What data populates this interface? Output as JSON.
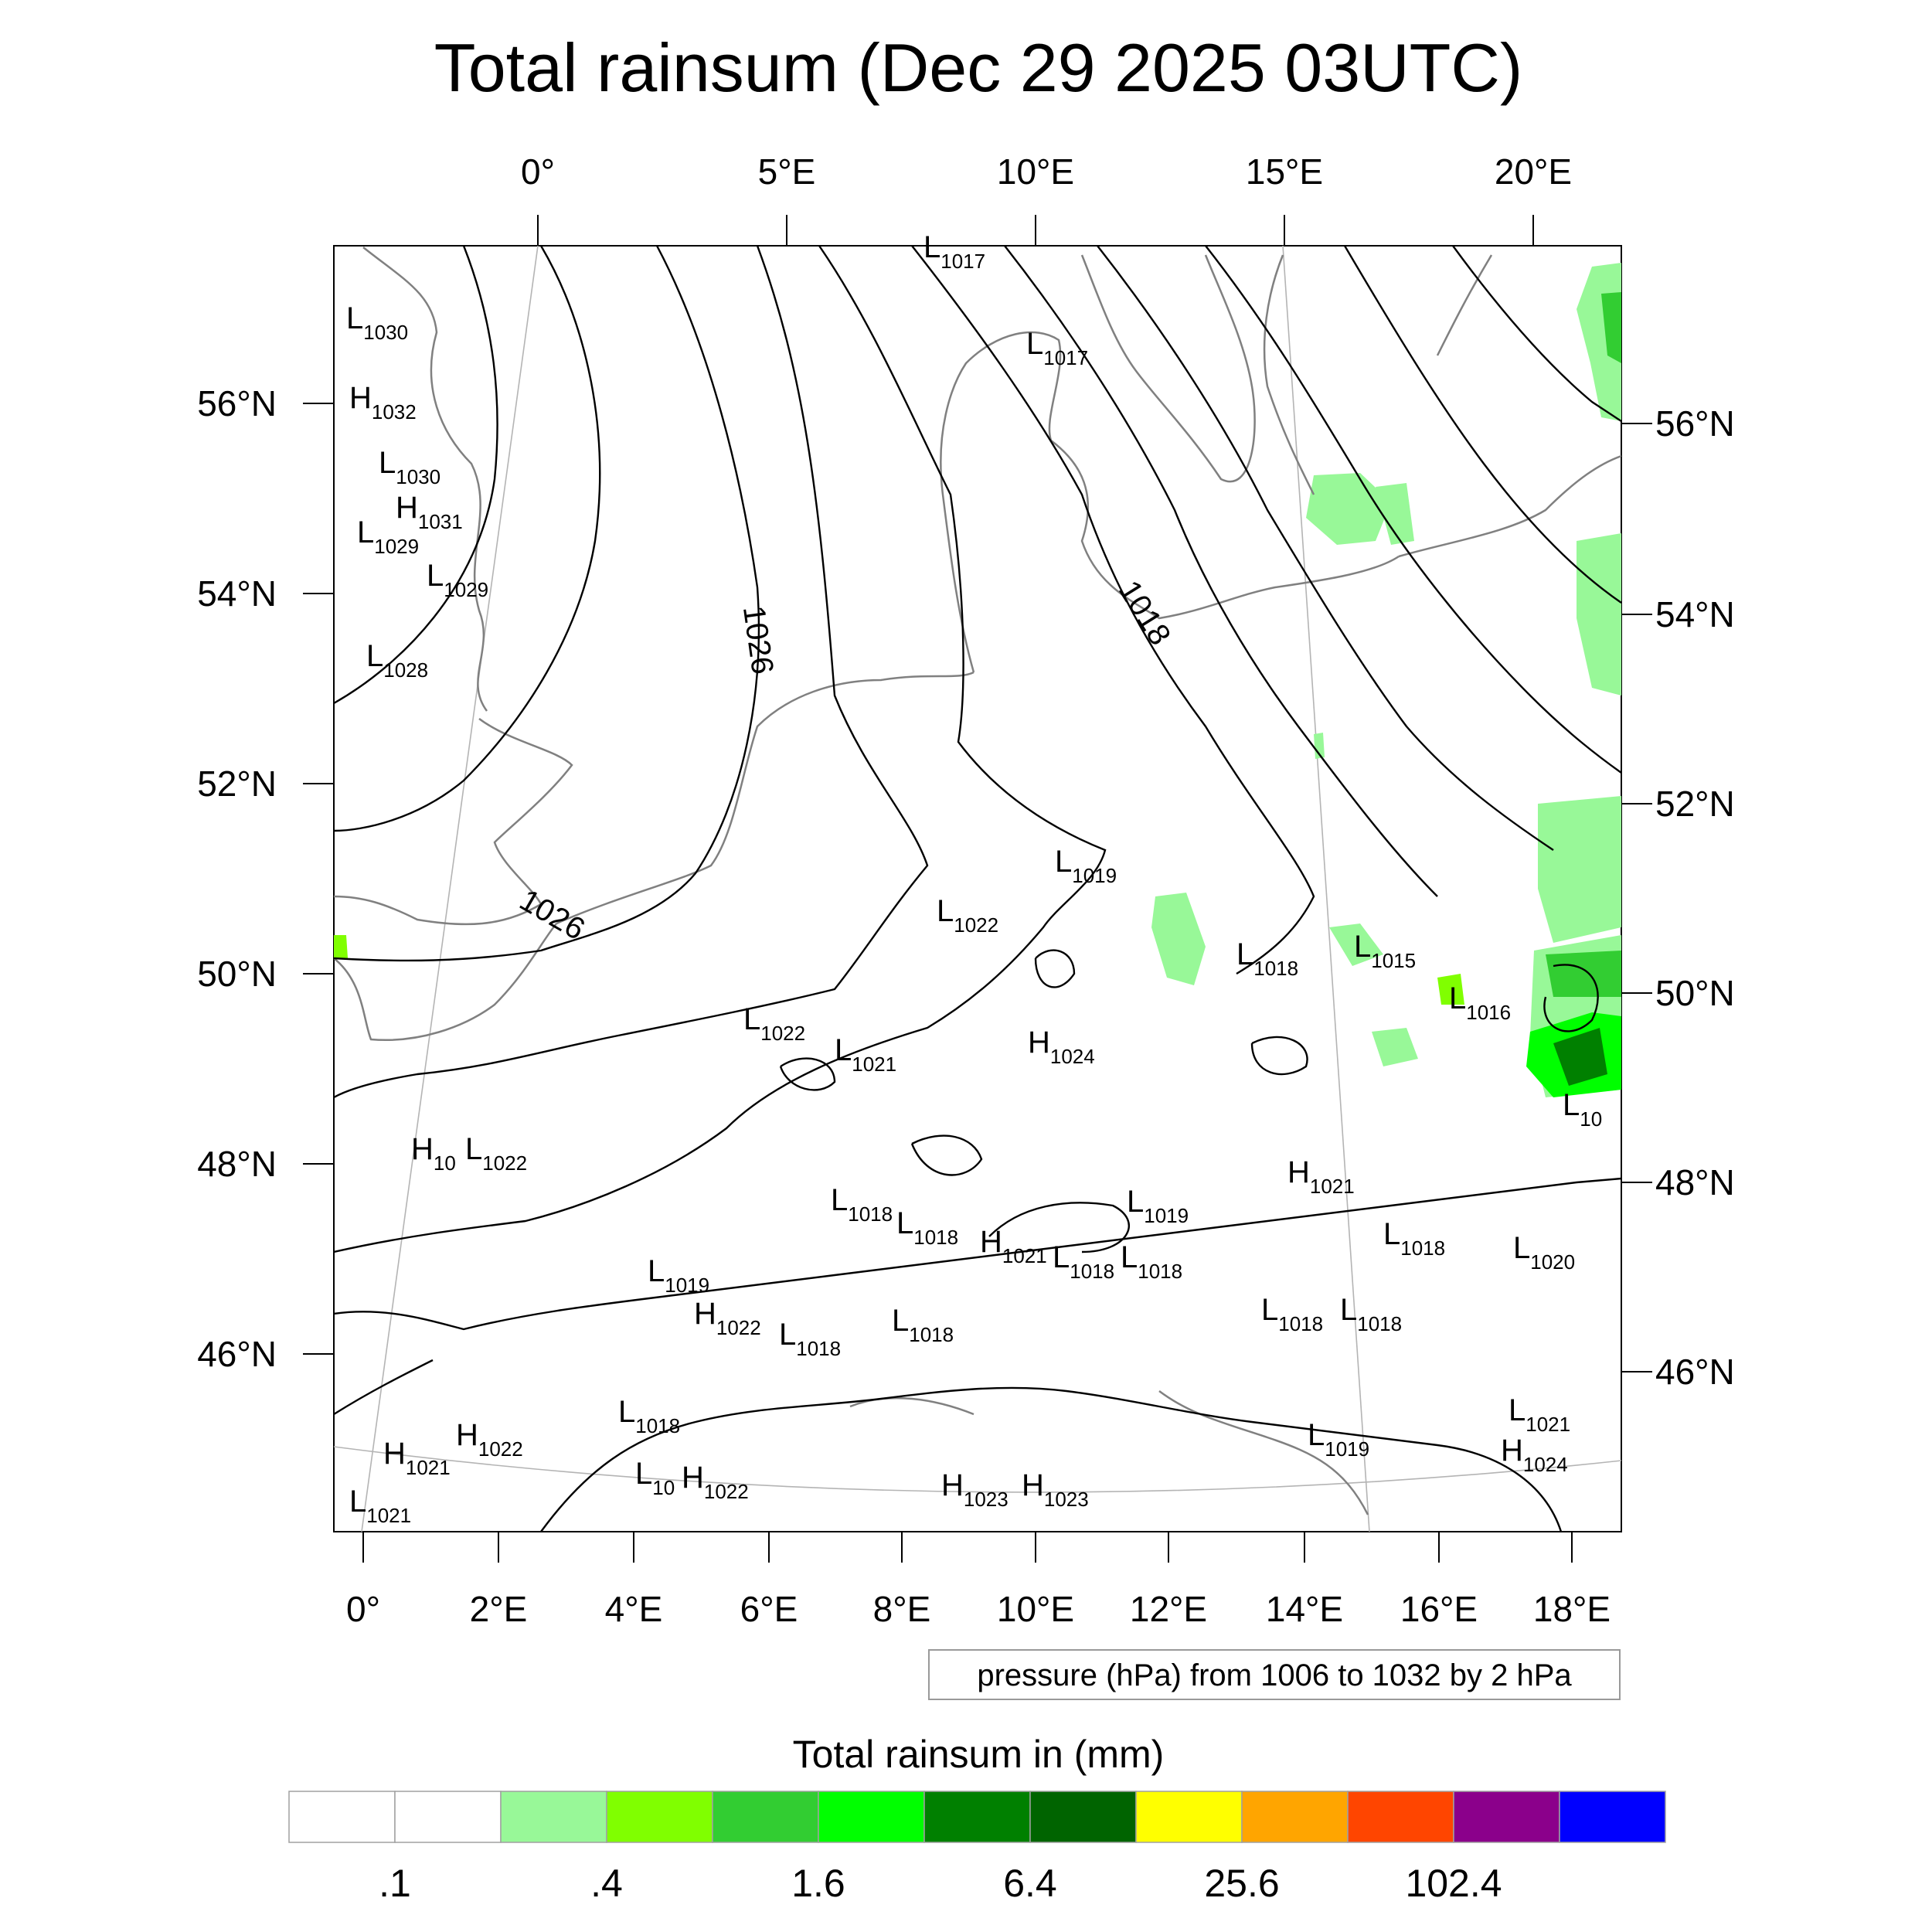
{
  "title": "Total rainsum (Dec 29 2025 03UTC)",
  "top_lon_labels": [
    "0°",
    "5°E",
    "10°E",
    "15°E",
    "20°E"
  ],
  "bottom_lon_labels": [
    "0°",
    "2°E",
    "4°E",
    "6°E",
    "8°E",
    "10°E",
    "12°E",
    "14°E",
    "16°E",
    "18°E"
  ],
  "left_lat_labels": [
    "56°N",
    "54°N",
    "52°N",
    "50°N",
    "48°N",
    "46°N"
  ],
  "right_lat_labels": [
    "56°N",
    "54°N",
    "52°N",
    "50°N",
    "48°N",
    "46°N"
  ],
  "isobar_labels": [
    "1026",
    "1018",
    "1026"
  ],
  "pressure_centers": [
    {
      "t": "L",
      "v": "1017"
    },
    {
      "t": "L",
      "v": "1030"
    },
    {
      "t": "L",
      "v": "1017"
    },
    {
      "t": "H",
      "v": "1032"
    },
    {
      "t": "L",
      "v": "1030"
    },
    {
      "t": "H",
      "v": "1031"
    },
    {
      "t": "L",
      "v": "1029"
    },
    {
      "t": "L",
      "v": "1029"
    },
    {
      "t": "L",
      "v": "1028"
    },
    {
      "t": "L",
      "v": "1019"
    },
    {
      "t": "L",
      "v": "1022"
    },
    {
      "t": "L",
      "v": "1018"
    },
    {
      "t": "L",
      "v": "1015"
    },
    {
      "t": "L",
      "v": "1016"
    },
    {
      "t": "L",
      "v": "1022"
    },
    {
      "t": "L",
      "v": "1021"
    },
    {
      "t": "H",
      "v": "1024"
    },
    {
      "t": "L",
      "v": "10"
    },
    {
      "t": "H",
      "v": "10"
    },
    {
      "t": "L",
      "v": "1022"
    },
    {
      "t": "H",
      "v": "1021"
    },
    {
      "t": "L",
      "v": "1018"
    },
    {
      "t": "L",
      "v": "1018"
    },
    {
      "t": "H",
      "v": "1021"
    },
    {
      "t": "L",
      "v": "1018"
    },
    {
      "t": "L",
      "v": "1018"
    },
    {
      "t": "L",
      "v": "1018"
    },
    {
      "t": "L",
      "v": "1020"
    },
    {
      "t": "L",
      "v": "1019"
    },
    {
      "t": "H",
      "v": "1022"
    },
    {
      "t": "L",
      "v": "1018"
    },
    {
      "t": "L",
      "v": "1018"
    },
    {
      "t": "L",
      "v": "1018"
    },
    {
      "t": "L",
      "v": "1018"
    },
    {
      "t": "L",
      "v": "1019"
    },
    {
      "t": "L",
      "v": "1018"
    },
    {
      "t": "H",
      "v": "1022"
    },
    {
      "t": "H",
      "v": "1021"
    },
    {
      "t": "L",
      "v": "10"
    },
    {
      "t": "H",
      "v": "1022"
    },
    {
      "t": "L",
      "v": "1021"
    },
    {
      "t": "H",
      "v": "1023"
    },
    {
      "t": "H",
      "v": "1023"
    },
    {
      "t": "L",
      "v": "1019"
    },
    {
      "t": "L",
      "v": "1021"
    },
    {
      "t": "H",
      "v": "1024"
    }
  ],
  "pressure_note": "pressure (hPa) from 1006 to 1032 by 2 hPa",
  "colorbar": {
    "title": "Total rainsum in (mm)",
    "colors": [
      "#ffffff",
      "#ffffff",
      "#98f898",
      "#80ff00",
      "#32cd32",
      "#00ff00",
      "#008000",
      "#006400",
      "#ffff00",
      "#ffa500",
      "#ff4500",
      "#8b008b",
      "#0000ff"
    ],
    "tick_labels": [
      ".1",
      ".4",
      "1.6",
      "6.4",
      "25.6",
      "102.4"
    ]
  }
}
